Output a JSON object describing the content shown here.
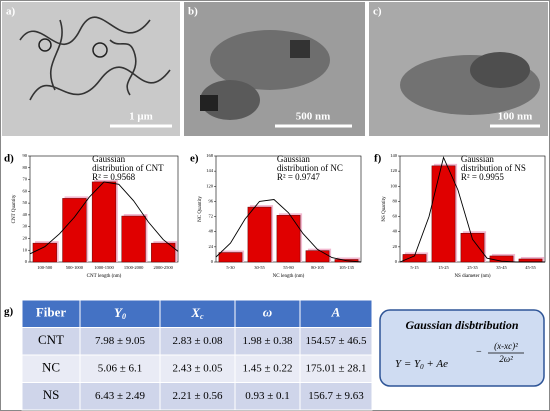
{
  "images": [
    {
      "label": "a)",
      "scale_bar": "1 μm"
    },
    {
      "label": "b)",
      "scale_bar": "500 nm"
    },
    {
      "label": "c)",
      "scale_bar": "100 nm"
    }
  ],
  "chart_data": [
    {
      "type": "bar",
      "panel": "d)",
      "title": [
        "Gaussian",
        "distribution of CNT"
      ],
      "r_squared": "R² = 0.9568",
      "x_label": "CNT length (nm)",
      "y_label": "CNT Quantity",
      "color": "#e00000",
      "categories": [
        "100-500",
        "500-1000",
        "1000-1500",
        "1500-2000",
        "2000-2500"
      ],
      "values": [
        16,
        54,
        68,
        39,
        16
      ],
      "ylim": [
        0,
        90
      ],
      "yticks": [
        0,
        10,
        20,
        30,
        40,
        50,
        60,
        70,
        80,
        90
      ],
      "curve": {
        "x": [
          -0.5,
          0,
          0.5,
          1,
          1.5,
          2,
          2.5,
          3,
          3.5,
          4,
          4.5
        ],
        "y": [
          7,
          13,
          24,
          38,
          55,
          68,
          66,
          52,
          34,
          19,
          9
        ]
      }
    },
    {
      "type": "bar",
      "panel": "e)",
      "title": [
        "Gaussian",
        "distribution of NC"
      ],
      "r_squared": "R² = 0.9747",
      "x_label": "NC length (nm)",
      "y_label": "NC Quantity",
      "color": "#e00000",
      "categories": [
        "5-30",
        "30-55",
        "55-80",
        "80-105",
        "105-135"
      ],
      "values": [
        15,
        87,
        74,
        18,
        4
      ],
      "ylim": [
        0,
        168
      ],
      "yticks": [
        0,
        24,
        48,
        72,
        96,
        120,
        144,
        168
      ],
      "curve": {
        "x": [
          -0.5,
          0,
          0.5,
          1,
          1.5,
          2,
          2.5,
          3,
          3.5,
          4,
          4.5
        ],
        "y": [
          8,
          30,
          68,
          96,
          99,
          78,
          45,
          20,
          7,
          2,
          0
        ]
      }
    },
    {
      "type": "bar",
      "panel": "f)",
      "title": [
        "Gaussian",
        "distribution of NS"
      ],
      "r_squared": "R² = 0.9955",
      "x_label": "NS diameter (nm)",
      "y_label": "NS Quantity",
      "color": "#e00000",
      "categories": [
        "5-15",
        "15-25",
        "25-35",
        "35-45",
        "45-55"
      ],
      "values": [
        10,
        127,
        38,
        8,
        4
      ],
      "ylim": [
        0,
        140
      ],
      "yticks": [
        0,
        20,
        40,
        60,
        80,
        100,
        120,
        140
      ],
      "curve": {
        "x": [
          -0.5,
          0,
          0.5,
          1,
          1.5,
          2,
          2.5,
          3,
          3.5,
          4,
          4.5
        ],
        "y": [
          0,
          8,
          60,
          138,
          95,
          30,
          5,
          1,
          0,
          0,
          0
        ]
      }
    }
  ],
  "table": {
    "label": "g)",
    "header": [
      "Fiber",
      {
        "symbol": "Y",
        "subscript": "0"
      },
      {
        "symbol": "X",
        "subscript": "c"
      },
      "ω",
      "A"
    ],
    "rows": [
      [
        "CNT",
        "7.98 ± 9.05",
        "2.83 ± 0.08",
        "1.98 ± 0.38",
        "154.57 ± 46.5"
      ],
      [
        "NC",
        "5.06 ± 6.1",
        "2.43 ± 0.05",
        "1.45 ± 0.22",
        "175.01 ± 28.1"
      ],
      [
        "NS",
        "6.43 ± 2.49",
        "2.21 ± 0.56",
        "0.93 ± 0.1",
        "156.7 ± 9.63"
      ]
    ]
  },
  "formula": {
    "title": "Gaussian disbtribution",
    "lhs": "Y = Y",
    "sub": "0",
    "mid": " + Ae",
    "sign": "−",
    "numerator": "(x-xc)²",
    "denominator": "2ω²"
  }
}
